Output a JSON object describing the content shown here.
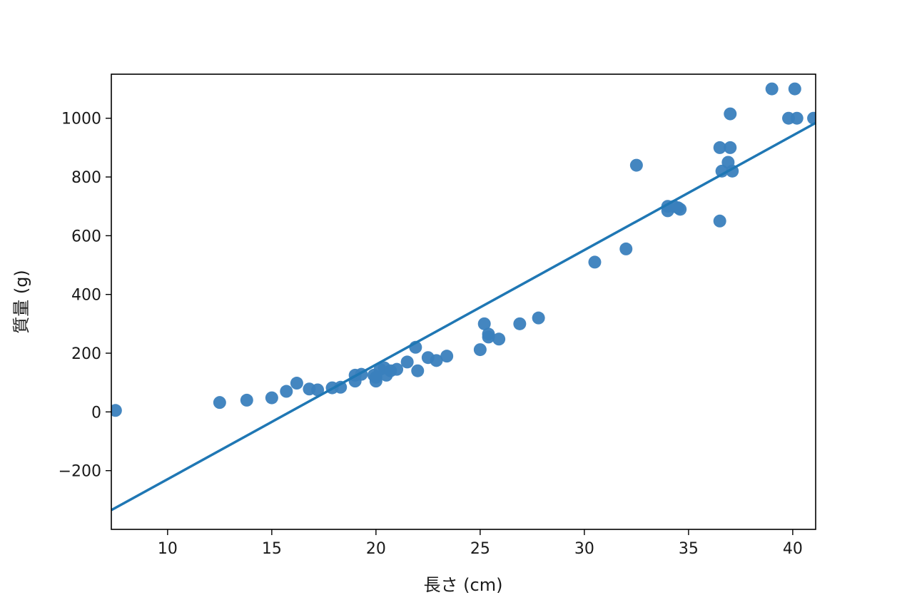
{
  "chart_data": {
    "type": "scatter",
    "xlabel": "長さ (cm)",
    "ylabel": "質量 (g)",
    "xlim": [
      7.3,
      41.1
    ],
    "ylim": [
      -400,
      1150
    ],
    "xticks": [
      10,
      15,
      20,
      25,
      30,
      35,
      40
    ],
    "yticks": [
      -200,
      0,
      200,
      400,
      600,
      800,
      1000
    ],
    "xtick_labels": [
      "10",
      "15",
      "20",
      "25",
      "30",
      "35",
      "40"
    ],
    "ytick_labels": [
      "−200",
      "0",
      "200",
      "400",
      "600",
      "800",
      "1000"
    ],
    "grid": false,
    "legend": "none",
    "point_color": "#3a7fbd",
    "line_color": "#1f77b4",
    "points": [
      [
        7.5,
        5
      ],
      [
        12.5,
        32
      ],
      [
        13.8,
        40
      ],
      [
        15.0,
        48
      ],
      [
        15.7,
        70
      ],
      [
        16.2,
        98
      ],
      [
        16.8,
        78
      ],
      [
        17.2,
        75
      ],
      [
        17.9,
        82
      ],
      [
        18.3,
        84
      ],
      [
        19.0,
        125
      ],
      [
        19.0,
        105
      ],
      [
        19.3,
        128
      ],
      [
        19.9,
        125
      ],
      [
        20.0,
        105
      ],
      [
        20.0,
        118
      ],
      [
        20.2,
        145
      ],
      [
        20.4,
        150
      ],
      [
        20.5,
        125
      ],
      [
        20.7,
        140
      ],
      [
        21.0,
        145
      ],
      [
        21.5,
        170
      ],
      [
        21.9,
        220
      ],
      [
        22.0,
        140
      ],
      [
        22.5,
        185
      ],
      [
        22.9,
        175
      ],
      [
        23.4,
        190
      ],
      [
        25.0,
        212
      ],
      [
        25.2,
        300
      ],
      [
        25.4,
        265
      ],
      [
        25.4,
        255
      ],
      [
        25.9,
        248
      ],
      [
        26.9,
        300
      ],
      [
        27.8,
        320
      ],
      [
        30.5,
        510
      ],
      [
        32.0,
        555
      ],
      [
        32.5,
        840
      ],
      [
        34.0,
        700
      ],
      [
        34.0,
        685
      ],
      [
        34.3,
        700
      ],
      [
        34.5,
        695
      ],
      [
        34.6,
        690
      ],
      [
        36.5,
        650
      ],
      [
        36.5,
        900
      ],
      [
        36.6,
        820
      ],
      [
        36.9,
        850
      ],
      [
        37.0,
        1015
      ],
      [
        37.0,
        900
      ],
      [
        37.1,
        820
      ],
      [
        39.0,
        1100
      ],
      [
        39.8,
        1000
      ],
      [
        40.1,
        1100
      ],
      [
        40.2,
        1000
      ],
      [
        41.0,
        1000
      ]
    ],
    "regression": {
      "slope": 39.01,
      "intercept": -619.2
    }
  }
}
